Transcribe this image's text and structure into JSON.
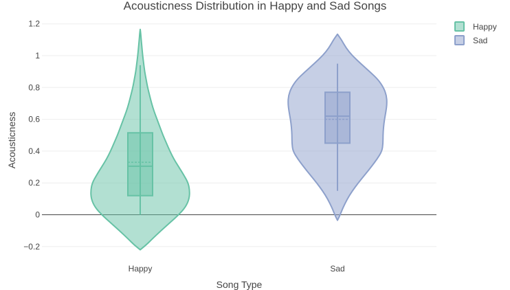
{
  "chart_data": {
    "type": "violin",
    "title": "Acousticness Distribution in Happy and Sad Songs",
    "xlabel": "Song Type",
    "ylabel": "Acousticness",
    "ylim": [
      -0.25,
      1.2
    ],
    "yticks": [
      -0.2,
      0,
      0.2,
      0.4,
      0.6,
      0.8,
      1,
      1.2
    ],
    "ytick_labels": [
      "−0.2",
      "0",
      "0.2",
      "0.4",
      "0.6",
      "0.8",
      "1",
      "1.2"
    ],
    "categories": [
      "Happy",
      "Sad"
    ],
    "grid": true,
    "legend_position": "top-right",
    "series": [
      {
        "name": "Happy",
        "color": "#66c2a5",
        "fill": "#66c2a5",
        "kde_min": -0.22,
        "kde_max": 1.165,
        "box": {
          "q1": 0.12,
          "median": 0.305,
          "q3": 0.515,
          "mean": 0.33,
          "whisker_low": 0.0,
          "whisker_high": 0.94
        },
        "profile": [
          [
            -0.22,
            0.0
          ],
          [
            -0.19,
            0.12
          ],
          [
            -0.15,
            0.25
          ],
          [
            -0.1,
            0.42
          ],
          [
            -0.05,
            0.6
          ],
          [
            0.0,
            0.78
          ],
          [
            0.05,
            0.92
          ],
          [
            0.1,
            0.99
          ],
          [
            0.15,
            1.0
          ],
          [
            0.2,
            0.97
          ],
          [
            0.25,
            0.88
          ],
          [
            0.3,
            0.78
          ],
          [
            0.35,
            0.68
          ],
          [
            0.4,
            0.6
          ],
          [
            0.45,
            0.53
          ],
          [
            0.5,
            0.46
          ],
          [
            0.55,
            0.4
          ],
          [
            0.6,
            0.34
          ],
          [
            0.65,
            0.28
          ],
          [
            0.7,
            0.23
          ],
          [
            0.75,
            0.19
          ],
          [
            0.8,
            0.15
          ],
          [
            0.85,
            0.12
          ],
          [
            0.9,
            0.09
          ],
          [
            0.95,
            0.07
          ],
          [
            1.0,
            0.05
          ],
          [
            1.05,
            0.035
          ],
          [
            1.1,
            0.02
          ],
          [
            1.14,
            0.01
          ],
          [
            1.165,
            0.0
          ]
        ]
      },
      {
        "name": "Sad",
        "color": "#8da0cb",
        "fill": "#8da0cb",
        "kde_min": -0.035,
        "kde_max": 1.135,
        "box": {
          "q1": 0.45,
          "median": 0.62,
          "q3": 0.77,
          "mean": 0.6,
          "whisker_low": 0.15,
          "whisker_high": 0.95
        },
        "profile": [
          [
            -0.035,
            0.0
          ],
          [
            -0.01,
            0.04
          ],
          [
            0.02,
            0.08
          ],
          [
            0.05,
            0.12
          ],
          [
            0.1,
            0.2
          ],
          [
            0.15,
            0.3
          ],
          [
            0.2,
            0.42
          ],
          [
            0.25,
            0.55
          ],
          [
            0.3,
            0.68
          ],
          [
            0.35,
            0.8
          ],
          [
            0.4,
            0.9
          ],
          [
            0.45,
            0.92
          ],
          [
            0.5,
            0.92
          ],
          [
            0.55,
            0.93
          ],
          [
            0.6,
            0.95
          ],
          [
            0.65,
            0.98
          ],
          [
            0.7,
            1.0
          ],
          [
            0.75,
            0.99
          ],
          [
            0.8,
            0.93
          ],
          [
            0.85,
            0.82
          ],
          [
            0.9,
            0.65
          ],
          [
            0.95,
            0.47
          ],
          [
            1.0,
            0.3
          ],
          [
            1.05,
            0.17
          ],
          [
            1.1,
            0.08
          ],
          [
            1.135,
            0.0
          ]
        ]
      }
    ]
  }
}
